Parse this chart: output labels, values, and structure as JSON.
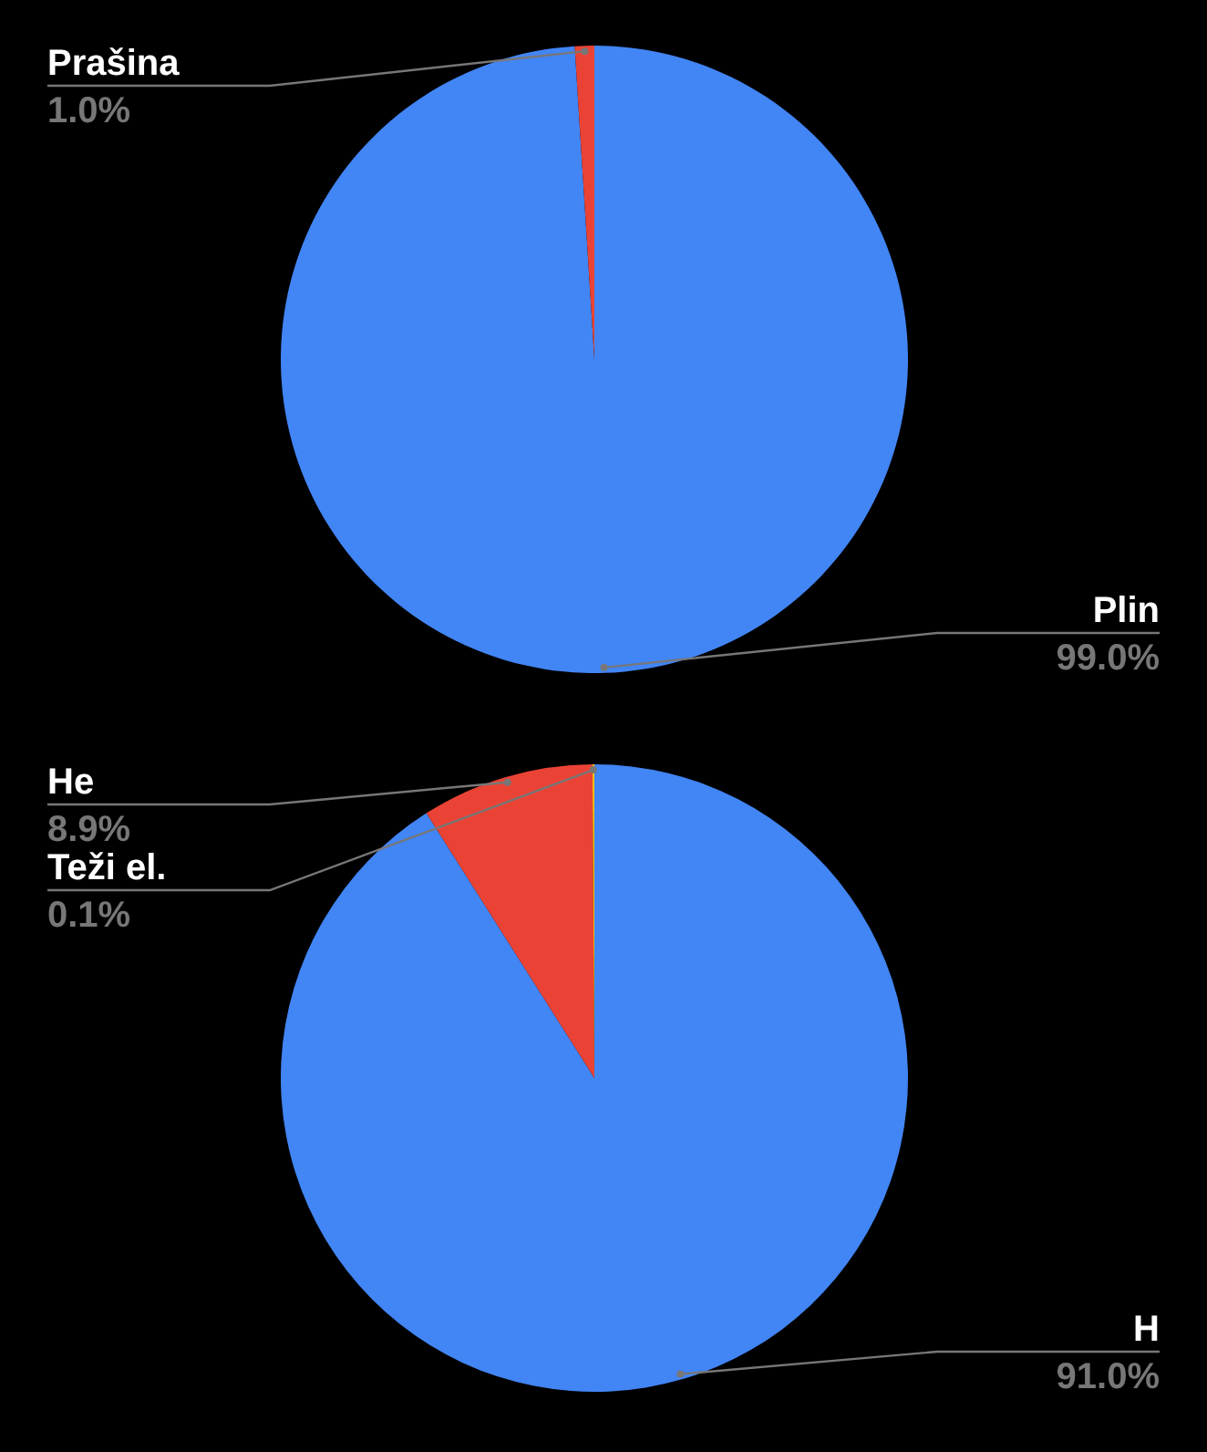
{
  "chart_data": [
    {
      "type": "pie",
      "categories": [
        "Plin",
        "Prašina"
      ],
      "values": [
        99,
        1
      ],
      "colors": [
        "#4285f4",
        "#ea4335"
      ],
      "value_labels": [
        "99.0%",
        "1.0%"
      ]
    },
    {
      "type": "pie",
      "categories": [
        "H",
        "He",
        "Teži el."
      ],
      "values": [
        91,
        8.9,
        0.1
      ],
      "colors": [
        "#4285f4",
        "#ea4335",
        "#fbbc04"
      ],
      "value_labels": [
        "91.0%",
        "8.9%",
        "0.1%"
      ]
    }
  ]
}
